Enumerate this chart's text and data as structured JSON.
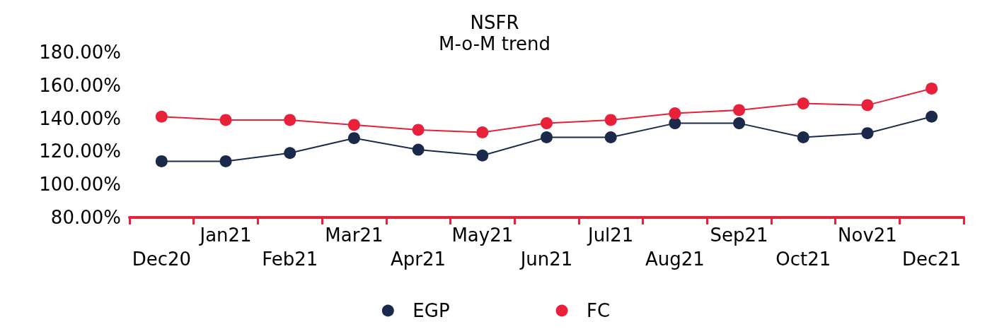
{
  "chart_data": {
    "type": "line",
    "title": "NSFR",
    "subtitle": "M-o-M trend",
    "categories": [
      "Dec20",
      "Jan21",
      "Feb21",
      "Mar21",
      "Apr21",
      "May21",
      "Jun21",
      "Jul21",
      "Aug21",
      "Sep21",
      "Oct21",
      "Nov21",
      "Dec21"
    ],
    "series": [
      {
        "name": "EGP",
        "color": "#1b2a4a",
        "values": [
          114,
          114,
          119,
          128,
          121,
          117.5,
          128.5,
          128.5,
          137,
          137,
          128.5,
          131,
          141
        ]
      },
      {
        "name": "FC",
        "color": "#e8203a",
        "values": [
          141,
          139,
          139,
          136,
          133,
          131.5,
          137,
          139,
          143,
          145,
          149,
          148,
          158
        ]
      }
    ],
    "ylim": [
      80,
      180
    ],
    "yticks": [
      {
        "value": 80,
        "label": "80.00%"
      },
      {
        "value": 100,
        "label": "100.00%"
      },
      {
        "value": 120,
        "label": "120.00%"
      },
      {
        "value": 140,
        "label": "140.00%"
      },
      {
        "value": 160,
        "label": "160.00%"
      },
      {
        "value": 180,
        "label": "180.00%"
      }
    ],
    "grid": false,
    "legend": "bottom",
    "marker": "circle",
    "line_style": "solid"
  }
}
